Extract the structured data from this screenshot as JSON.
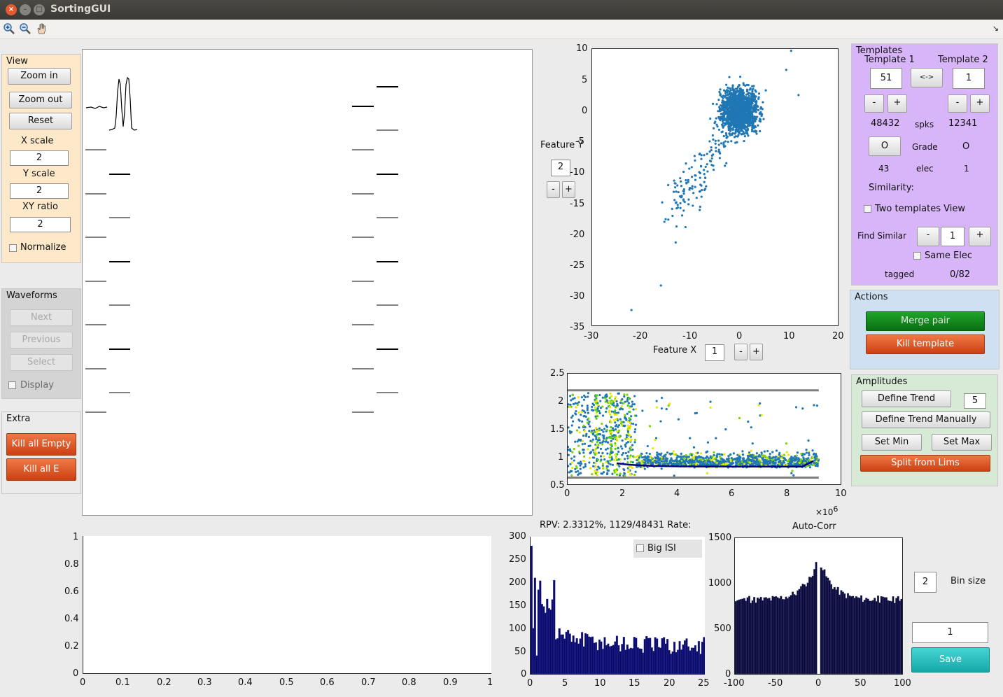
{
  "window": {
    "title": "SortingGUI"
  },
  "toolbar": {
    "icons": [
      "zoom-in-icon",
      "zoom-out-icon",
      "pan-hand-icon"
    ]
  },
  "view_panel": {
    "title": "View",
    "zoom_in": "Zoom in",
    "zoom_out": "Zoom out",
    "reset": "Reset",
    "x_scale_label": "X scale",
    "x_scale": "2",
    "y_scale_label": "Y scale",
    "y_scale": "2",
    "xy_ratio_label": "XY ratio",
    "xy_ratio": "2",
    "normalize": "Normalize"
  },
  "waveforms_panel": {
    "title": "Waveforms",
    "next": "Next",
    "previous": "Previous",
    "select": "Select",
    "display": "Display"
  },
  "extra_panel": {
    "title": "Extra",
    "kill_all_empty": "Kill all Empty",
    "kill_all_e": "Kill all E"
  },
  "feature_plot": {
    "feature_y_label": "Feature Y",
    "feature_y": "2",
    "feature_x_label": "Feature X",
    "feature_x": "1",
    "minus": "-",
    "plus": "+",
    "yticks": [
      "10",
      "5",
      "0",
      "-5",
      "-10",
      "-15",
      "-20",
      "-25",
      "-30",
      "-35"
    ],
    "xticks": [
      "-30",
      "-20",
      "-10",
      "0",
      "10",
      "20"
    ]
  },
  "amp_plot": {
    "yticks": [
      "2.5",
      "2",
      "1.5",
      "1",
      "0.5"
    ],
    "xticks": [
      "0",
      "2",
      "4",
      "6",
      "8",
      "10"
    ],
    "exponent": "×10",
    "exponent_power": "6"
  },
  "templates_panel": {
    "title": "Templates",
    "template1_label": "Template 1",
    "template1": "51",
    "template2_label": "Template 2",
    "template2": "1",
    "swap": "<->",
    "minus": "-",
    "plus": "+",
    "spks1": "48432",
    "spks_label": "spks",
    "spks2": "12341",
    "grade_button": "O",
    "grade_label": "Grade",
    "grade2": "O",
    "elec1": "43",
    "elec_label": "elec",
    "elec2": "1",
    "similarity": "Similarity:",
    "two_templates_view": "Two templates View",
    "find_similar": "Find Similar",
    "find_similar_value": "1",
    "same_elec": "Same Elec",
    "tagged_label": "tagged",
    "tagged_value": "0/82"
  },
  "actions_panel": {
    "title": "Actions",
    "merge_pair": "Merge pair",
    "kill_template": "Kill template"
  },
  "amplitudes_panel": {
    "title": "Amplitudes",
    "define_trend": "Define Trend",
    "trend_value": "5",
    "define_trend_manually": "Define Trend Manually",
    "set_min": "Set Min",
    "set_max": "Set Max",
    "split_from_lims": "Split from Lims"
  },
  "bottom_plot": {
    "yticks": [
      "1",
      "0.8",
      "0.6",
      "0.4",
      "0.2",
      "0"
    ],
    "xticks": [
      "0",
      "0.1",
      "0.2",
      "0.3",
      "0.4",
      "0.5",
      "0.6",
      "0.7",
      "0.8",
      "0.9",
      "1"
    ]
  },
  "isi_plot": {
    "title": "RPV: 2.3312%, 1129/48431 Rate:",
    "big_isi": "Big ISI",
    "yticks": [
      "300",
      "250",
      "200",
      "150",
      "100",
      "50",
      "0"
    ],
    "xticks": [
      "0",
      "5",
      "10",
      "15",
      "20",
      "25"
    ]
  },
  "autocorr_plot": {
    "title": "Auto-Corr",
    "yticks": [
      "1500",
      "1000",
      "500",
      "0"
    ],
    "xticks": [
      "-100",
      "-50",
      "0",
      "50",
      "100"
    ]
  },
  "bin_size": {
    "value": "2",
    "label": "Bin size"
  },
  "save_area": {
    "value": "1",
    "save": "Save"
  },
  "colors": {
    "scatter": "#1f77b4",
    "hist": "#0b0b6e",
    "orange_btn": "#e05a25",
    "green_btn": "#128a1c",
    "purple_panel": "#d8b4f8",
    "peach_panel": "#fde9c9"
  }
}
